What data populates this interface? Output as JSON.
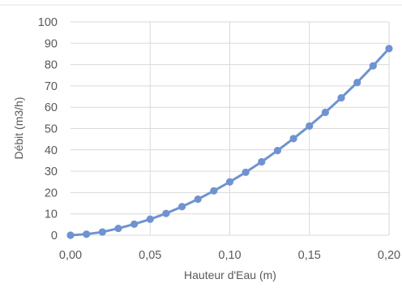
{
  "chart_data": {
    "type": "line",
    "title": "",
    "xlabel": "Hauteur d'Eau (m)",
    "ylabel": "Débit (m3/h)",
    "xlim": [
      0,
      0.2
    ],
    "ylim": [
      0,
      100
    ],
    "x_ticks": [
      "0,00",
      "0,05",
      "0,10",
      "0,15",
      "0,20"
    ],
    "y_ticks": [
      "0",
      "10",
      "20",
      "30",
      "40",
      "50",
      "60",
      "70",
      "80",
      "90",
      "100"
    ],
    "grid": true,
    "legend": "none",
    "series_color": "#6f93d1",
    "x": [
      0.0,
      0.01,
      0.02,
      0.03,
      0.04,
      0.05,
      0.06,
      0.07,
      0.08,
      0.09,
      0.1,
      0.11,
      0.12,
      0.13,
      0.14,
      0.15,
      0.16,
      0.17,
      0.18,
      0.19,
      0.2
    ],
    "y": [
      0,
      0.5,
      1.5,
      3.2,
      5.2,
      7.5,
      10.2,
      13.4,
      16.9,
      20.8,
      25.0,
      29.5,
      34.4,
      39.7,
      45.3,
      51.2,
      57.6,
      64.4,
      71.6,
      79.4,
      87.5
    ]
  }
}
